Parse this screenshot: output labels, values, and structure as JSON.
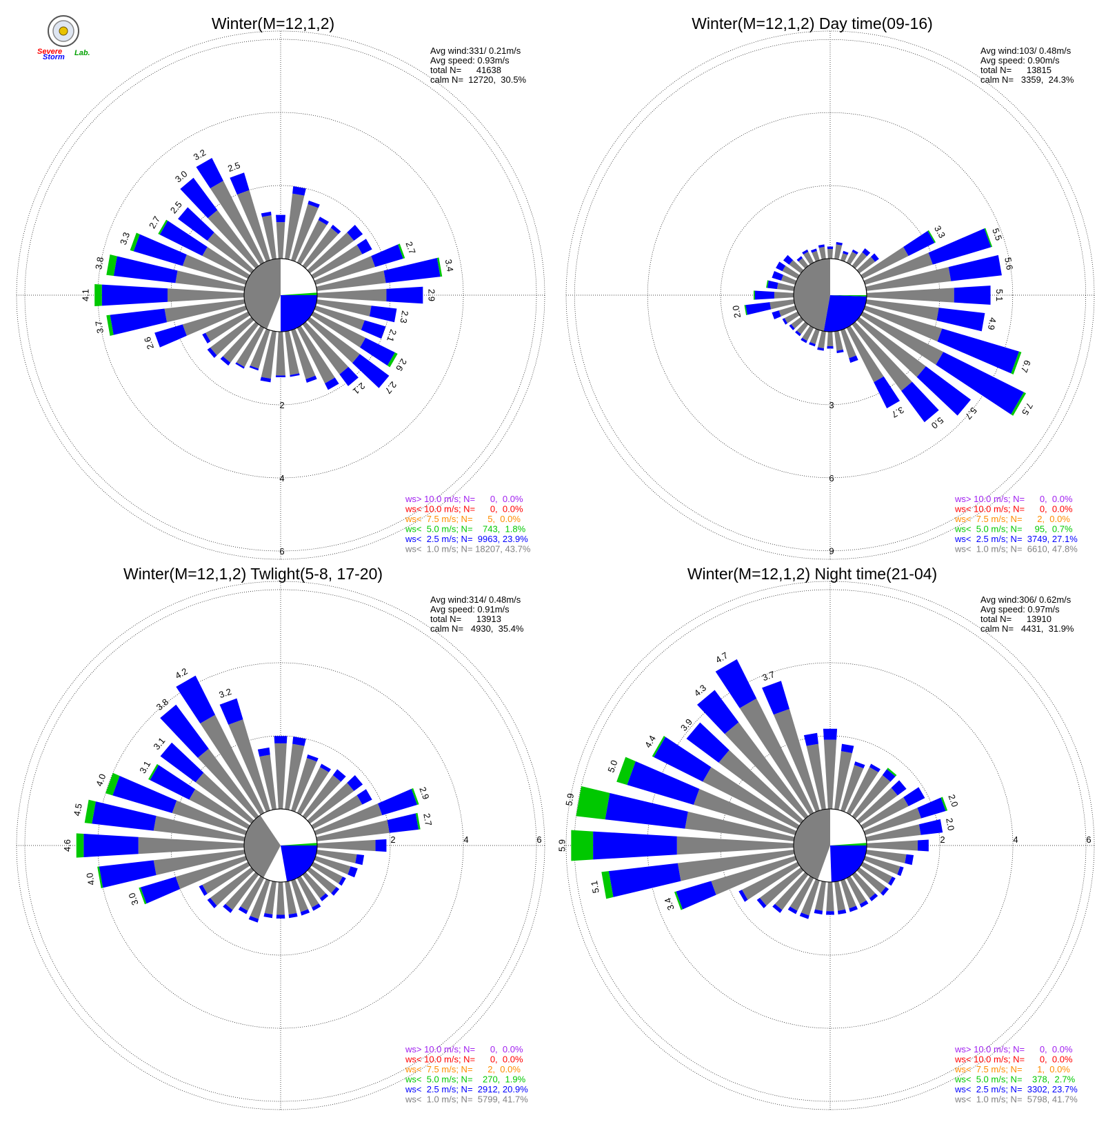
{
  "logo": {
    "text_a": "Severe",
    "text_b": "Storm",
    "text_c": "Lab."
  },
  "colors": {
    "ws_gt_10": "#a020f0",
    "ws_lt_10": "#ff0000",
    "ws_lt_7_5": "#ff8c00",
    "ws_lt_5": "#00c800",
    "ws_lt_2_5": "#0000ff",
    "ws_lt_1": "#808080",
    "calm": "#808080",
    "grid": "#000000"
  },
  "chart_data": [
    {
      "type": "wind_rose",
      "title": "Winter(M=12,1,2)",
      "stats": [
        "Avg wind:331/ 0.21m/s",
        "Avg speed: 0.93m/s",
        "total N=      41638",
        "calm N=  12720,  30.5%"
      ],
      "rings": [
        2,
        4,
        6
      ],
      "ring_labels": [
        "2",
        "4",
        "6"
      ],
      "tick_axis": "south",
      "ring_unit_px": 53,
      "calm_radius": 1.0,
      "legend": [
        "ws> 10.0 m/s; N=      0,  0.0%",
        "ws< 10.0 m/s; N=      0,  0.0%",
        "ws<  7.5 m/s; N=      5,  0.0%",
        "ws<  5.0 m/s; N=    743,  1.8%",
        "ws<  2.5 m/s; N=  9963, 23.9%",
        "ws<  1.0 m/s; N= 18207, 43.7%"
      ],
      "calm_sector": {
        "gray_from_deg": 202,
        "gray_to_deg": 360,
        "blue_from_deg": 90,
        "blue_to_deg": 180,
        "green_from_deg": 86,
        "green_to_deg": 90
      },
      "petals": [
        [
          0,
          1.0,
          0.2,
          0,
          ""
        ],
        [
          10,
          1.8,
          0.2,
          0,
          ""
        ],
        [
          20,
          1.6,
          0.1,
          0,
          ""
        ],
        [
          30,
          1.3,
          0.1,
          0,
          ""
        ],
        [
          40,
          1.3,
          0.1,
          0,
          ""
        ],
        [
          50,
          1.5,
          0.3,
          0,
          ""
        ],
        [
          60,
          1.5,
          0.3,
          0,
          ""
        ],
        [
          70,
          1.7,
          0.8,
          0.05,
          "2.7"
        ],
        [
          80,
          1.9,
          1.5,
          0.05,
          "3.4"
        ],
        [
          90,
          1.9,
          1.0,
          0,
          "2.9"
        ],
        [
          100,
          1.5,
          0.7,
          0,
          "2.3"
        ],
        [
          110,
          1.4,
          0.6,
          0,
          "2.1"
        ],
        [
          120,
          1.6,
          0.9,
          0.08,
          "2.6"
        ],
        [
          130,
          1.7,
          1.0,
          0,
          "2.7"
        ],
        [
          140,
          1.7,
          0.4,
          0,
          "2.1"
        ],
        [
          150,
          1.7,
          0.2,
          0,
          ""
        ],
        [
          160,
          1.4,
          0.1,
          0,
          ""
        ],
        [
          170,
          1.2,
          0.05,
          0,
          ""
        ],
        [
          180,
          1.2,
          0.05,
          0,
          ""
        ],
        [
          190,
          1.3,
          0.1,
          0,
          ""
        ],
        [
          200,
          1.1,
          0.05,
          0,
          ""
        ],
        [
          210,
          1.2,
          0.05,
          0,
          ""
        ],
        [
          220,
          1.3,
          0.1,
          0,
          ""
        ],
        [
          230,
          1.4,
          0.1,
          0,
          ""
        ],
        [
          240,
          1.3,
          0.1,
          0,
          ""
        ],
        [
          250,
          1.8,
          0.8,
          0,
          "2.6"
        ],
        [
          260,
          2.2,
          1.5,
          0.1,
          "3.7"
        ],
        [
          270,
          2.1,
          1.8,
          0.2,
          "4.1"
        ],
        [
          280,
          1.9,
          1.7,
          0.2,
          "3.8"
        ],
        [
          290,
          1.8,
          1.4,
          0.1,
          "3.3"
        ],
        [
          300,
          1.4,
          1.3,
          0.05,
          "2.7"
        ],
        [
          310,
          1.5,
          1.0,
          0,
          "2.5"
        ],
        [
          320,
          1.9,
          1.1,
          0,
          "3.0"
        ],
        [
          330,
          2.5,
          0.7,
          0,
          "3.2"
        ],
        [
          340,
          2.0,
          0.5,
          0,
          "2.5"
        ],
        [
          350,
          1.2,
          0.1,
          0,
          ""
        ]
      ]
    },
    {
      "type": "wind_rose",
      "title": "Winter(M=12,1,2) Day time(09-16)",
      "stats": [
        "Avg wind:103/ 0.48m/s",
        "Avg speed: 0.90m/s",
        "total N=      13815",
        "calm N=   3359,  24.3%"
      ],
      "rings": [
        3,
        6,
        9
      ],
      "ring_labels": [
        "3",
        "6",
        "9"
      ],
      "tick_axis": "south",
      "ring_unit_px": 35.3,
      "calm_radius": 1.5,
      "legend": [
        "ws> 10.0 m/s; N=      0,  0.0%",
        "ws< 10.0 m/s; N=      0,  0.0%",
        "ws<  7.5 m/s; N=      2,  0.0%",
        "ws<  5.0 m/s; N=     95,  0.7%",
        "ws<  2.5 m/s; N=  3749, 27.1%",
        "ws<  1.0 m/s; N=  6610, 47.8%"
      ],
      "calm_sector": {
        "gray_from_deg": 190,
        "gray_to_deg": 360,
        "blue_from_deg": 92,
        "blue_to_deg": 190,
        "green_from_deg": 90,
        "green_to_deg": 92
      },
      "petals": [
        [
          0,
          0.4,
          0.1,
          0,
          ""
        ],
        [
          10,
          0.6,
          0.1,
          0,
          ""
        ],
        [
          20,
          0.3,
          0.1,
          0,
          ""
        ],
        [
          30,
          0.5,
          0.1,
          0,
          ""
        ],
        [
          40,
          0.7,
          0.2,
          0,
          ""
        ],
        [
          50,
          0.8,
          0.2,
          0,
          ""
        ],
        [
          60,
          2.1,
          1.2,
          0.05,
          "3.3"
        ],
        [
          70,
          2.9,
          2.5,
          0.05,
          "5.5"
        ],
        [
          80,
          3.5,
          2.1,
          0,
          "5.6"
        ],
        [
          90,
          3.6,
          1.5,
          0,
          "5.1"
        ],
        [
          100,
          3.0,
          1.9,
          0,
          "4.9"
        ],
        [
          110,
          3.3,
          3.3,
          0.1,
          "6.7"
        ],
        [
          120,
          3.7,
          3.7,
          0.1,
          "7.5"
        ],
        [
          130,
          3.4,
          2.3,
          0,
          "5.7"
        ],
        [
          140,
          3.4,
          1.6,
          0,
          "5.0"
        ],
        [
          150,
          2.5,
          1.2,
          0,
          "3.7"
        ],
        [
          160,
          1.2,
          0.2,
          0,
          ""
        ],
        [
          170,
          0.8,
          0.1,
          0,
          ""
        ],
        [
          180,
          0.6,
          0.1,
          0,
          ""
        ],
        [
          190,
          0.7,
          0.1,
          0,
          ""
        ],
        [
          200,
          0.6,
          0.1,
          0,
          ""
        ],
        [
          210,
          0.6,
          0.1,
          0,
          ""
        ],
        [
          220,
          0.5,
          0.1,
          0,
          ""
        ],
        [
          230,
          0.5,
          0.1,
          0,
          ""
        ],
        [
          240,
          0.6,
          0.1,
          0,
          ""
        ],
        [
          250,
          0.7,
          0.3,
          0,
          ""
        ],
        [
          260,
          1.0,
          1.0,
          0.05,
          "2.0"
        ],
        [
          270,
          0.8,
          0.8,
          0.05,
          ""
        ],
        [
          280,
          0.7,
          0.4,
          0.05,
          ""
        ],
        [
          290,
          0.6,
          0.4,
          0,
          ""
        ],
        [
          300,
          0.7,
          0.3,
          0,
          ""
        ],
        [
          310,
          0.6,
          0.3,
          0,
          ""
        ],
        [
          320,
          0.4,
          0.1,
          0,
          ""
        ],
        [
          330,
          0.5,
          0.1,
          0,
          ""
        ],
        [
          340,
          0.4,
          0.1,
          0,
          ""
        ],
        [
          350,
          0.5,
          0.1,
          0,
          ""
        ]
      ]
    },
    {
      "type": "wind_rose",
      "title": "Winter(M=12,1,2) Twlight(5-8, 17-20)",
      "stats": [
        "Avg wind:314/ 0.48m/s",
        "Avg speed: 0.91m/s",
        "total N=      13913",
        "calm N=   4930,  35.4%"
      ],
      "rings": [
        2,
        4,
        6
      ],
      "ring_labels": [
        "2",
        "4",
        "6"
      ],
      "tick_axis": "east",
      "ring_unit_px": 53,
      "calm_radius": 1.0,
      "legend": [
        "ws> 10.0 m/s; N=      0,  0.0%",
        "ws< 10.0 m/s; N=      0,  0.0%",
        "ws<  7.5 m/s; N=      2,  0.0%",
        "ws<  5.0 m/s; N=    270,  1.9%",
        "ws<  2.5 m/s; N=  2912, 20.9%",
        "ws<  1.0 m/s; N=  5799, 41.7%"
      ],
      "calm_sector": {
        "gray_from_deg": 208,
        "gray_to_deg": 326,
        "blue_from_deg": 90,
        "blue_to_deg": 170,
        "green_from_deg": 86,
        "green_to_deg": 90
      },
      "petals": [
        [
          0,
          1.8,
          0.2,
          0,
          ""
        ],
        [
          10,
          1.8,
          0.2,
          0,
          ""
        ],
        [
          20,
          1.5,
          0.1,
          0,
          ""
        ],
        [
          30,
          1.4,
          0.1,
          0,
          ""
        ],
        [
          40,
          1.4,
          0.2,
          0,
          ""
        ],
        [
          50,
          1.5,
          0.3,
          0,
          ""
        ],
        [
          60,
          1.5,
          0.3,
          0,
          ""
        ],
        [
          70,
          1.9,
          1.0,
          0.05,
          "2.9"
        ],
        [
          80,
          2.0,
          0.8,
          0.05,
          "2.7"
        ],
        [
          90,
          1.6,
          0.3,
          0,
          ""
        ],
        [
          100,
          1.1,
          0.2,
          0,
          ""
        ],
        [
          110,
          1.0,
          0.2,
          0,
          ""
        ],
        [
          120,
          0.9,
          0.1,
          0,
          ""
        ],
        [
          130,
          0.9,
          0.1,
          0,
          ""
        ],
        [
          140,
          0.8,
          0.1,
          0,
          ""
        ],
        [
          150,
          0.9,
          0.1,
          0,
          ""
        ],
        [
          160,
          0.9,
          0.1,
          0,
          ""
        ],
        [
          170,
          0.9,
          0.1,
          0,
          ""
        ],
        [
          180,
          0.9,
          0.1,
          0,
          ""
        ],
        [
          190,
          0.9,
          0.1,
          0,
          ""
        ],
        [
          200,
          1.1,
          0.1,
          0,
          ""
        ],
        [
          210,
          1.0,
          0.1,
          0,
          ""
        ],
        [
          220,
          1.2,
          0.1,
          0,
          ""
        ],
        [
          230,
          1.4,
          0.1,
          0,
          ""
        ],
        [
          240,
          1.4,
          0.1,
          0,
          ""
        ],
        [
          250,
          2.0,
          1.0,
          0.05,
          "3.0"
        ],
        [
          260,
          2.5,
          1.5,
          0.05,
          "4.0"
        ],
        [
          270,
          2.9,
          1.5,
          0.2,
          "4.6"
        ],
        [
          280,
          2.5,
          1.7,
          0.2,
          "4.5"
        ],
        [
          290,
          2.1,
          1.7,
          0.2,
          "4.0"
        ],
        [
          300,
          1.8,
          1.2,
          0.05,
          "3.1"
        ],
        [
          310,
          1.9,
          1.2,
          0,
          "3.1"
        ],
        [
          320,
          2.3,
          1.5,
          0,
          "3.8"
        ],
        [
          330,
          3.0,
          1.2,
          0,
          "4.2"
        ],
        [
          340,
          2.6,
          0.6,
          0,
          "3.2"
        ],
        [
          350,
          1.5,
          0.2,
          0,
          ""
        ]
      ]
    },
    {
      "type": "wind_rose",
      "title": "Winter(M=12,1,2) Night time(21-04)",
      "stats": [
        "Avg wind:306/ 0.62m/s",
        "Avg speed: 0.97m/s",
        "total N=      13910",
        "calm N=   4431,  31.9%"
      ],
      "rings": [
        2,
        4,
        6
      ],
      "ring_labels": [
        "2",
        "4",
        "6"
      ],
      "tick_axis": "east",
      "ring_unit_px": 53,
      "calm_radius": 1.0,
      "legend": [
        "ws> 10.0 m/s; N=      0,  0.0%",
        "ws< 10.0 m/s; N=      0,  0.0%",
        "ws<  7.5 m/s; N=      1,  0.0%",
        "ws<  5.0 m/s; N=    378,  2.7%",
        "ws<  2.5 m/s; N=  3302, 23.7%",
        "ws<  1.0 m/s; N=  5798, 41.7%"
      ],
      "calm_sector": {
        "gray_from_deg": 200,
        "gray_to_deg": 360,
        "blue_from_deg": 90,
        "blue_to_deg": 178,
        "green_from_deg": 86,
        "green_to_deg": 90
      },
      "petals": [
        [
          0,
          1.9,
          0.3,
          0,
          ""
        ],
        [
          10,
          1.6,
          0.2,
          0,
          ""
        ],
        [
          20,
          1.3,
          0.1,
          0,
          ""
        ],
        [
          30,
          1.4,
          0.1,
          0,
          ""
        ],
        [
          40,
          1.4,
          0.2,
          0.05,
          ""
        ],
        [
          50,
          1.3,
          0.3,
          0,
          ""
        ],
        [
          60,
          1.4,
          0.5,
          0,
          ""
        ],
        [
          70,
          1.6,
          0.7,
          0.05,
          "2.0"
        ],
        [
          80,
          1.5,
          0.6,
          0,
          "2.0"
        ],
        [
          90,
          1.4,
          0.3,
          0,
          ""
        ],
        [
          100,
          1.1,
          0.2,
          0,
          ""
        ],
        [
          110,
          1.0,
          0.1,
          0,
          ""
        ],
        [
          120,
          0.9,
          0.1,
          0,
          ""
        ],
        [
          130,
          0.9,
          0.1,
          0,
          ""
        ],
        [
          140,
          0.8,
          0.1,
          0,
          ""
        ],
        [
          150,
          0.8,
          0.1,
          0,
          ""
        ],
        [
          160,
          0.8,
          0.1,
          0,
          ""
        ],
        [
          170,
          0.8,
          0.1,
          0,
          ""
        ],
        [
          180,
          0.8,
          0.1,
          0,
          ""
        ],
        [
          190,
          0.8,
          0.1,
          0,
          ""
        ],
        [
          200,
          1.0,
          0.1,
          0,
          ""
        ],
        [
          210,
          1.0,
          0.1,
          0,
          ""
        ],
        [
          220,
          1.2,
          0.1,
          0,
          ""
        ],
        [
          230,
          1.4,
          0.1,
          0,
          ""
        ],
        [
          240,
          1.7,
          0.1,
          0,
          ""
        ],
        [
          250,
          2.4,
          1.0,
          0.05,
          "3.4"
        ],
        [
          260,
          3.2,
          1.9,
          0.2,
          "5.1"
        ],
        [
          270,
          3.2,
          2.3,
          0.6,
          "5.9"
        ],
        [
          280,
          3.0,
          2.2,
          0.8,
          "5.9"
        ],
        [
          290,
          2.9,
          1.9,
          0.3,
          "5.0"
        ],
        [
          300,
          2.9,
          1.5,
          0.05,
          "4.4"
        ],
        [
          310,
          2.8,
          1.1,
          0,
          "3.9"
        ],
        [
          320,
          3.2,
          1.1,
          0,
          "4.3"
        ],
        [
          330,
          3.5,
          1.2,
          0,
          "4.7"
        ],
        [
          340,
          2.9,
          0.8,
          0,
          "3.7"
        ],
        [
          350,
          1.8,
          0.3,
          0,
          ""
        ]
      ]
    }
  ]
}
